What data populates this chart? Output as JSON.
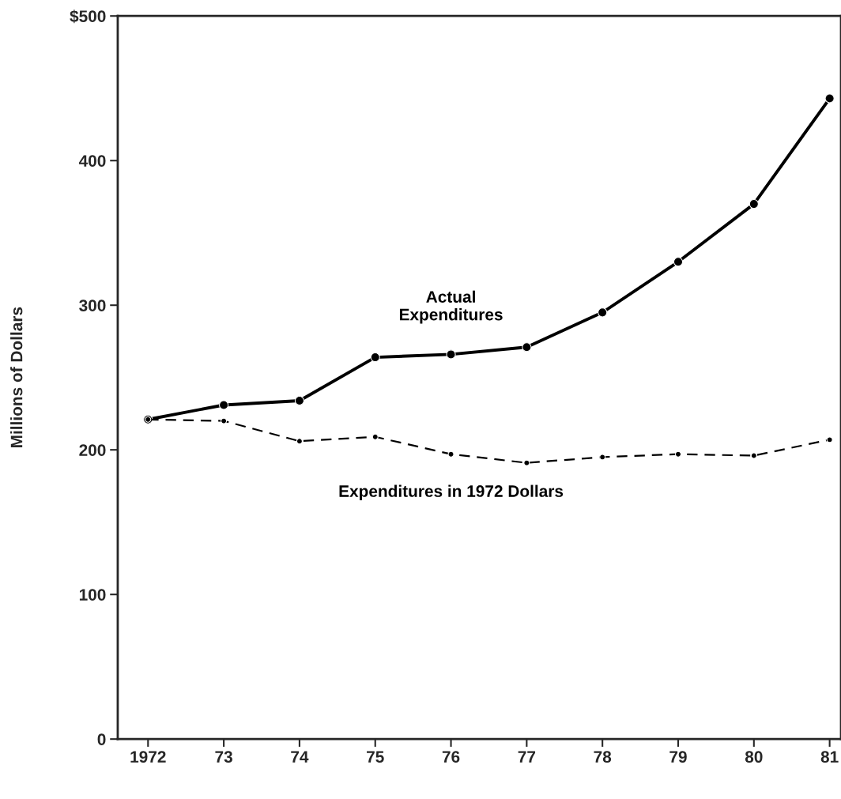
{
  "chart_data": {
    "type": "line",
    "ylabel": "Millions of Dollars",
    "categories": [
      "1972",
      "73",
      "74",
      "75",
      "76",
      "77",
      "78",
      "79",
      "80",
      "81"
    ],
    "series": [
      {
        "name": "Actual\nExpenditures",
        "color": "#000000",
        "line_style": "solid",
        "values": [
          221,
          231,
          234,
          264,
          266,
          271,
          295,
          330,
          370,
          443
        ]
      },
      {
        "name": "Expenditures in 1972 Dollars",
        "color": "#000000",
        "line_style": "dashed",
        "values": [
          221,
          220,
          206,
          209,
          197,
          191,
          195,
          197,
          196,
          207
        ]
      }
    ],
    "ylim": [
      0,
      500
    ],
    "yticks": [
      0,
      100,
      200,
      300,
      400,
      {
        "value": 500,
        "label": "$500"
      }
    ],
    "marker": "circle",
    "grid": false,
    "legend": false
  }
}
